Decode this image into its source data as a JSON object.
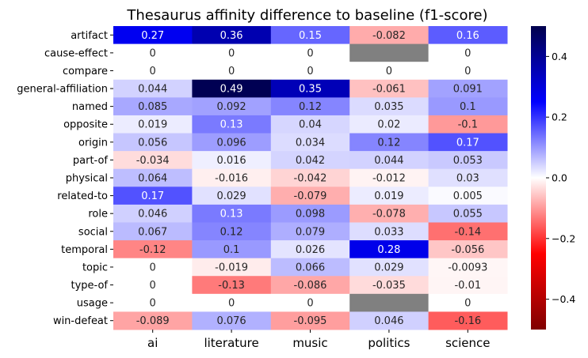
{
  "chart_data": {
    "type": "heatmap",
    "title": "Thesaurus affinity difference to baseline (f1-score)",
    "columns": [
      "ai",
      "literature",
      "music",
      "politics",
      "science"
    ],
    "rows": [
      "artifact",
      "cause-effect",
      "compare",
      "general-affiliation",
      "named",
      "opposite",
      "origin",
      "part-of",
      "physical",
      "related-to",
      "role",
      "social",
      "temporal",
      "topic",
      "type-of",
      "usage",
      "win-defeat"
    ],
    "values": [
      [
        0.27,
        0.36,
        0.15,
        -0.082,
        0.16
      ],
      [
        0,
        0,
        0,
        null,
        0
      ],
      [
        0,
        0,
        0,
        0,
        0
      ],
      [
        0.044,
        0.49,
        0.35,
        -0.061,
        0.091
      ],
      [
        0.085,
        0.092,
        0.12,
        0.035,
        0.1
      ],
      [
        0.019,
        0.13,
        0.04,
        0.02,
        -0.1
      ],
      [
        0.056,
        0.096,
        0.034,
        0.12,
        0.17
      ],
      [
        -0.034,
        0.016,
        0.042,
        0.044,
        0.053
      ],
      [
        0.064,
        -0.016,
        -0.042,
        -0.012,
        0.03
      ],
      [
        0.17,
        0.029,
        -0.079,
        0.019,
        0.005
      ],
      [
        0.046,
        0.13,
        0.098,
        -0.078,
        0.055
      ],
      [
        0.067,
        0.12,
        0.079,
        0.033,
        -0.14
      ],
      [
        -0.12,
        0.1,
        0.026,
        0.28,
        -0.056
      ],
      [
        0,
        -0.019,
        0.066,
        0.029,
        -0.0093
      ],
      [
        0,
        -0.13,
        -0.086,
        -0.035,
        -0.01
      ],
      [
        0,
        0,
        0,
        null,
        0
      ],
      [
        -0.089,
        0.076,
        -0.095,
        0.046,
        -0.16
      ]
    ],
    "labels": [
      [
        "0.27",
        "0.36",
        "0.15",
        "-0.082",
        "0.16"
      ],
      [
        "0",
        "0",
        "0",
        "",
        "0"
      ],
      [
        "0",
        "0",
        "0",
        "0",
        "0"
      ],
      [
        "0.044",
        "0.49",
        "0.35",
        "-0.061",
        "0.091"
      ],
      [
        "0.085",
        "0.092",
        "0.12",
        "0.035",
        "0.1"
      ],
      [
        "0.019",
        "0.13",
        "0.04",
        "0.02",
        "-0.1"
      ],
      [
        "0.056",
        "0.096",
        "0.034",
        "0.12",
        "0.17"
      ],
      [
        "-0.034",
        "0.016",
        "0.042",
        "0.044",
        "0.053"
      ],
      [
        "0.064",
        "-0.016",
        "-0.042",
        "-0.012",
        "0.03"
      ],
      [
        "0.17",
        "0.029",
        "-0.079",
        "0.019",
        "0.005"
      ],
      [
        "0.046",
        "0.13",
        "0.098",
        "-0.078",
        "0.055"
      ],
      [
        "0.067",
        "0.12",
        "0.079",
        "0.033",
        "-0.14"
      ],
      [
        "-0.12",
        "0.1",
        "0.026",
        "0.28",
        "-0.056"
      ],
      [
        "0",
        "-0.019",
        "0.066",
        "0.029",
        "-0.0093"
      ],
      [
        "0",
        "-0.13",
        "-0.086",
        "-0.035",
        "-0.01"
      ],
      [
        "0",
        "0",
        "0",
        "",
        "0"
      ],
      [
        "-0.089",
        "0.076",
        "-0.095",
        "0.046",
        "-0.16"
      ]
    ],
    "colorbar": {
      "vmin": -0.5,
      "vmax": 0.5,
      "ticks": [
        0.4,
        0.2,
        0.0,
        -0.2,
        -0.4
      ],
      "tick_labels": [
        "0.4",
        "0.2",
        "0.0",
        "−0.2",
        "−0.4"
      ],
      "colormap": "seismic"
    },
    "missing_color": "#808080"
  }
}
